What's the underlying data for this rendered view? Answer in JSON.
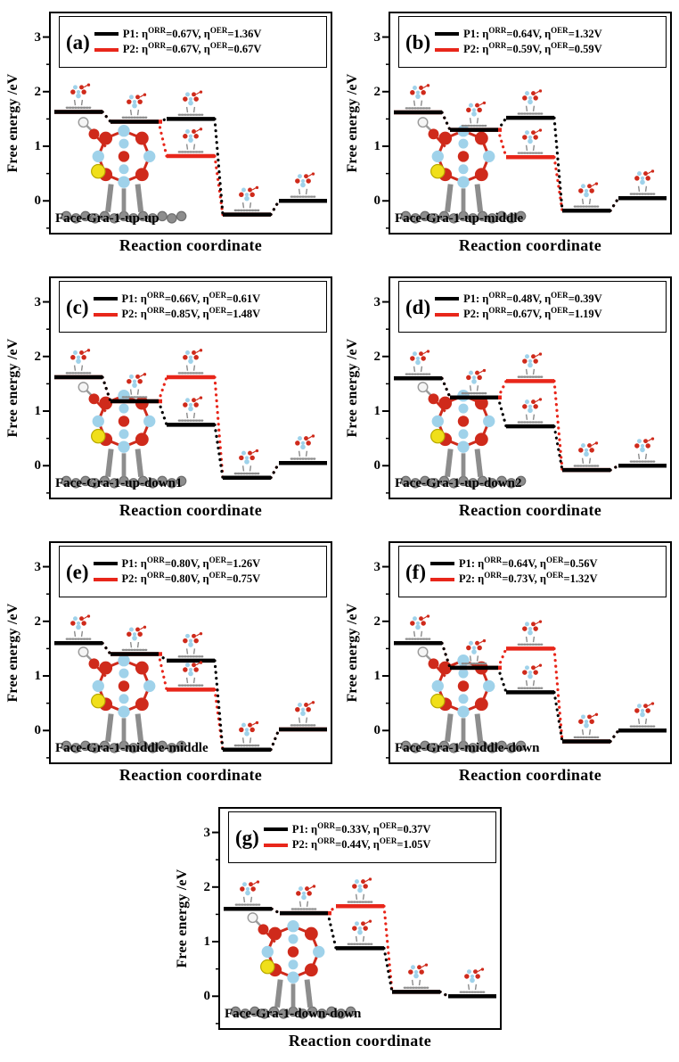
{
  "figure": {
    "description": "Free energy diagrams of ORR/OER pathways P1 and P2 on seven Face-Gra-1 configurations",
    "layout_rows": [
      [
        "a",
        "b"
      ],
      [
        "c",
        "d"
      ],
      [
        "e",
        "f"
      ],
      [
        "g"
      ]
    ]
  },
  "colors": {
    "p1": "#000000",
    "p2": "#e8261a",
    "mol_blue": "#9fd2ea",
    "mol_red": "#cf2a1b",
    "mol_gray": "#8d8d8d",
    "mol_yellow": "#f0df1a",
    "mol_white": "#f5f5f5"
  },
  "axes": {
    "ylabel": "Free energy /eV",
    "xlabel": "Reaction coordinate",
    "yticks": [
      0,
      1,
      2,
      3
    ],
    "yticks_minor": [
      -0.5,
      0.5,
      1.5,
      2.5
    ],
    "ylim": [
      -0.6,
      3.45
    ],
    "grid": false,
    "legend_position": "top"
  },
  "chart_data": [
    {
      "panel": "(a)",
      "system": "Face-Gra-1-up-up",
      "type": "line",
      "x": [
        1,
        2,
        3,
        4,
        5
      ],
      "series": [
        {
          "name": "P1",
          "color": "#000000",
          "eta_ORR_V": 0.67,
          "eta_OER_V": 1.36,
          "label": {
            "p": "P1: η",
            "s1": "ORR",
            "m": "=0.67V, η",
            "s2": "OER",
            "t": "=1.36V"
          },
          "values": [
            1.63,
            1.45,
            1.5,
            -0.25,
            0.0
          ]
        },
        {
          "name": "P2",
          "color": "#e8261a",
          "eta_ORR_V": 0.67,
          "eta_OER_V": 0.67,
          "label": {
            "p": "P2: η",
            "s1": "ORR",
            "m": "=0.67V, η",
            "s2": "OER",
            "t": "=0.67V"
          },
          "values": [
            1.63,
            1.45,
            0.82,
            -0.25,
            0.0
          ]
        }
      ]
    },
    {
      "panel": "(b)",
      "system": "Face-Gra-1-up-middle",
      "type": "line",
      "x": [
        1,
        2,
        3,
        4,
        5
      ],
      "series": [
        {
          "name": "P1",
          "color": "#000000",
          "eta_ORR_V": 0.64,
          "eta_OER_V": 1.32,
          "label": {
            "p": "P1: η",
            "s1": "ORR",
            "m": "=0.64V, η",
            "s2": "OER",
            "t": "=1.32V"
          },
          "values": [
            1.62,
            1.3,
            1.52,
            -0.18,
            0.05
          ]
        },
        {
          "name": "P2",
          "color": "#e8261a",
          "eta_ORR_V": 0.59,
          "eta_OER_V": 0.59,
          "label": {
            "p": "P2: η",
            "s1": "ORR",
            "m": "=0.59V, η",
            "s2": "OER",
            "t": "=0.59V"
          },
          "values": [
            1.62,
            1.3,
            0.8,
            -0.18,
            0.05
          ]
        }
      ]
    },
    {
      "panel": "(c)",
      "system": "Face-Gra-1-up-down1",
      "type": "line",
      "x": [
        1,
        2,
        3,
        4,
        5
      ],
      "series": [
        {
          "name": "P1",
          "color": "#000000",
          "eta_ORR_V": 0.66,
          "eta_OER_V": 0.61,
          "label": {
            "p": "P1: η",
            "s1": "ORR",
            "m": "=0.66V, η",
            "s2": "OER",
            "t": "=0.61V"
          },
          "values": [
            1.62,
            1.18,
            0.75,
            -0.22,
            0.05
          ]
        },
        {
          "name": "P2",
          "color": "#e8261a",
          "eta_ORR_V": 0.85,
          "eta_OER_V": 1.48,
          "label": {
            "p": "P2: η",
            "s1": "ORR",
            "m": "=0.85V, η",
            "s2": "OER",
            "t": "=1.48V"
          },
          "values": [
            1.62,
            1.18,
            1.62,
            -0.22,
            0.05
          ]
        }
      ]
    },
    {
      "panel": "(d)",
      "system": "Face-Gra-1-up-down2",
      "type": "line",
      "x": [
        1,
        2,
        3,
        4,
        5
      ],
      "series": [
        {
          "name": "P1",
          "color": "#000000",
          "eta_ORR_V": 0.48,
          "eta_OER_V": 0.39,
          "label": {
            "p": "P1: η",
            "s1": "ORR",
            "m": "=0.48V, η",
            "s2": "OER",
            "t": "=0.39V"
          },
          "values": [
            1.6,
            1.25,
            0.72,
            -0.08,
            0.0
          ]
        },
        {
          "name": "P2",
          "color": "#e8261a",
          "eta_ORR_V": 0.67,
          "eta_OER_V": 1.19,
          "label": {
            "p": "P2: η",
            "s1": "ORR",
            "m": "=0.67V, η",
            "s2": "OER",
            "t": "=1.19V"
          },
          "values": [
            1.6,
            1.25,
            1.55,
            -0.08,
            0.0
          ]
        }
      ]
    },
    {
      "panel": "(e)",
      "system": "Face-Gra-1-middle-middle",
      "type": "line",
      "x": [
        1,
        2,
        3,
        4,
        5
      ],
      "series": [
        {
          "name": "P1",
          "color": "#000000",
          "eta_ORR_V": 0.8,
          "eta_OER_V": 1.26,
          "label": {
            "p": "P1: η",
            "s1": "ORR",
            "m": "=0.80V, η",
            "s2": "OER",
            "t": "=1.26V"
          },
          "values": [
            1.6,
            1.4,
            1.28,
            -0.35,
            0.02
          ]
        },
        {
          "name": "P2",
          "color": "#e8261a",
          "eta_ORR_V": 0.8,
          "eta_OER_V": 0.75,
          "label": {
            "p": "P2: η",
            "s1": "ORR",
            "m": "=0.80V, η",
            "s2": "OER",
            "t": "=0.75V"
          },
          "values": [
            1.6,
            1.4,
            0.75,
            -0.35,
            0.02
          ]
        }
      ]
    },
    {
      "panel": "(f)",
      "system": "Face-Gra-1-middle-down",
      "type": "line",
      "x": [
        1,
        2,
        3,
        4,
        5
      ],
      "series": [
        {
          "name": "P1",
          "color": "#000000",
          "eta_ORR_V": 0.64,
          "eta_OER_V": 0.56,
          "label": {
            "p": "P1: η",
            "s1": "ORR",
            "m": "=0.64V, η",
            "s2": "OER",
            "t": "=0.56V"
          },
          "values": [
            1.6,
            1.15,
            0.7,
            -0.2,
            0.0
          ]
        },
        {
          "name": "P2",
          "color": "#e8261a",
          "eta_ORR_V": 0.73,
          "eta_OER_V": 1.32,
          "label": {
            "p": "P2: η",
            "s1": "ORR",
            "m": "=0.73V, η",
            "s2": "OER",
            "t": "=1.32V"
          },
          "values": [
            1.6,
            1.15,
            1.5,
            -0.2,
            0.0
          ]
        }
      ]
    },
    {
      "panel": "(g)",
      "system": "Face-Gra-1-down-down",
      "type": "line",
      "x": [
        1,
        2,
        3,
        4,
        5
      ],
      "series": [
        {
          "name": "P1",
          "color": "#000000",
          "eta_ORR_V": 0.33,
          "eta_OER_V": 0.37,
          "label": {
            "p": "P1: η",
            "s1": "ORR",
            "m": "=0.33V, η",
            "s2": "OER",
            "t": "=0.37V"
          },
          "values": [
            1.6,
            1.52,
            0.88,
            0.08,
            0.0
          ]
        },
        {
          "name": "P2",
          "color": "#e8261a",
          "eta_ORR_V": 0.44,
          "eta_OER_V": 1.05,
          "label": {
            "p": "P2: η",
            "s1": "ORR",
            "m": "=0.44V, η",
            "s2": "OER",
            "t": "=1.05V"
          },
          "values": [
            1.6,
            1.52,
            1.65,
            0.08,
            0.0
          ]
        }
      ]
    }
  ]
}
